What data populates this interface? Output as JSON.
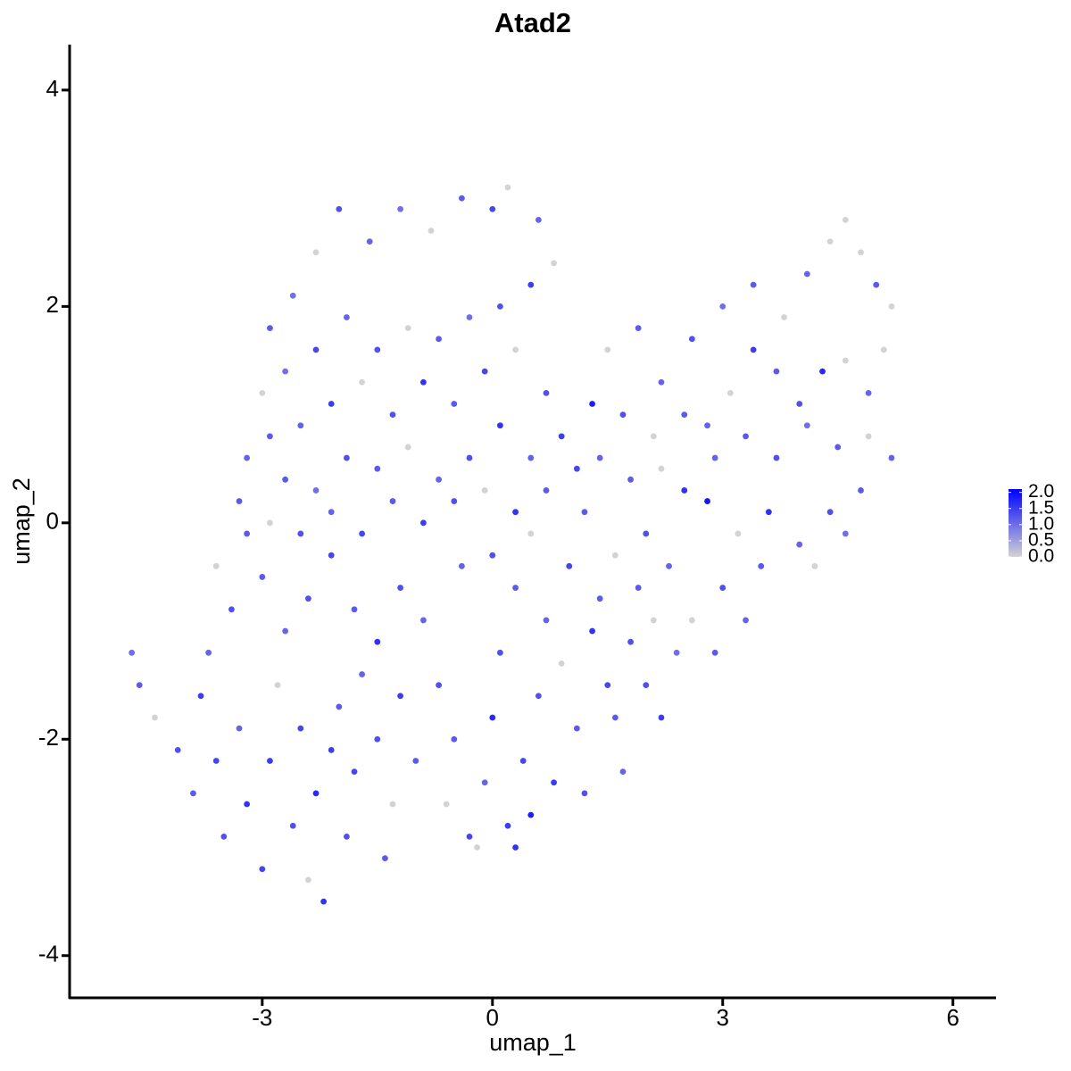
{
  "chart_data": {
    "type": "scatter",
    "title": "Atad2",
    "x_label": "umap_1",
    "y_label": "umap_2",
    "x": [
      -2.9,
      -2.6,
      -2.3,
      -2.0,
      -1.6,
      -1.2,
      -0.8,
      -0.4,
      0.0,
      0.2,
      0.6,
      0.8,
      0.5,
      0.1,
      -0.3,
      -0.7,
      -1.1,
      -1.5,
      -1.9,
      -2.3,
      -2.7,
      -3.0,
      -2.9,
      -2.5,
      -2.1,
      -1.7,
      -1.3,
      -0.9,
      -0.5,
      -0.1,
      0.3,
      0.7,
      0.9,
      0.5,
      0.1,
      -0.3,
      -0.7,
      -1.1,
      -1.5,
      -1.9,
      -2.3,
      -2.7,
      -3.2,
      -3.3,
      -2.9,
      -2.5,
      -2.1,
      -1.7,
      -1.3,
      -0.9,
      -0.5,
      -0.1,
      0.3,
      0.7,
      1.1,
      1.3,
      1.5,
      1.9,
      2.2,
      2.6,
      3.0,
      3.4,
      3.8,
      4.1,
      4.4,
      4.6,
      4.8,
      5.0,
      5.2,
      5.1,
      4.9,
      4.6,
      4.3,
      4.0,
      3.7,
      3.4,
      3.1,
      2.8,
      2.5,
      2.1,
      1.7,
      1.4,
      1.8,
      2.2,
      2.5,
      2.9,
      3.3,
      3.7,
      4.1,
      4.5,
      4.9,
      5.2,
      4.8,
      4.4,
      4.0,
      3.6,
      3.2,
      2.8,
      3.5,
      3.0,
      2.6,
      3.3,
      2.9,
      2.4,
      2.0,
      1.6,
      2.2,
      4.6,
      4.2,
      -4.7,
      -4.6,
      -4.4,
      -4.1,
      -3.8,
      -3.9,
      -3.6,
      -3.5,
      -3.3,
      -3.2,
      -3.0,
      -2.9,
      -2.8,
      -2.6,
      -2.5,
      -2.4,
      -2.3,
      -2.2,
      -2.1,
      -2.0,
      -1.9,
      -1.8,
      -1.7,
      -1.5,
      -1.4,
      -1.3,
      -1.2,
      -1.0,
      -3.7,
      -3.4,
      -3.0,
      -2.7,
      -2.4,
      -2.1,
      -1.8,
      -1.5,
      -1.2,
      -0.9,
      -3.6,
      -3.2,
      -0.7,
      -0.5,
      -0.6,
      -0.3,
      -0.1,
      0.0,
      0.1,
      0.2,
      0.3,
      0.4,
      0.5,
      0.6,
      0.7,
      0.8,
      0.9,
      1.0,
      1.1,
      1.2,
      1.3,
      1.4,
      1.5,
      1.6,
      1.8,
      1.9,
      2.1,
      2.3,
      0.0,
      -0.4,
      0.5,
      1.2,
      -0.2,
      0.3,
      2.0,
      1.7
    ],
    "y": [
      1.8,
      2.1,
      2.5,
      2.9,
      2.6,
      2.9,
      2.7,
      3.0,
      2.9,
      3.1,
      2.8,
      2.4,
      2.2,
      2.0,
      1.9,
      1.7,
      1.8,
      1.6,
      1.9,
      1.6,
      1.4,
      1.2,
      0.8,
      0.9,
      1.1,
      1.3,
      1.0,
      1.3,
      1.1,
      1.4,
      1.6,
      1.2,
      0.8,
      0.6,
      0.9,
      0.6,
      0.4,
      0.7,
      0.5,
      0.6,
      0.3,
      0.4,
      0.6,
      0.2,
      0.0,
      -0.1,
      0.1,
      -0.1,
      0.2,
      0.0,
      0.2,
      0.3,
      0.1,
      0.3,
      0.5,
      1.1,
      1.6,
      1.8,
      1.3,
      1.7,
      2.0,
      2.2,
      1.9,
      2.3,
      2.6,
      2.8,
      2.5,
      2.2,
      2.0,
      1.6,
      1.2,
      1.5,
      1.4,
      1.1,
      1.4,
      1.6,
      1.2,
      0.9,
      1.0,
      0.8,
      1.0,
      0.6,
      0.4,
      0.5,
      0.3,
      0.6,
      0.8,
      0.6,
      0.9,
      0.7,
      0.8,
      0.6,
      0.3,
      0.1,
      -0.2,
      0.1,
      -0.1,
      0.2,
      -0.4,
      -0.6,
      -0.9,
      -0.9,
      -1.2,
      -1.2,
      -1.5,
      -1.8,
      -1.8,
      -0.1,
      -0.4,
      -1.2,
      -1.5,
      -1.8,
      -2.1,
      -1.6,
      -2.5,
      -2.2,
      -2.9,
      -1.9,
      -2.6,
      -3.2,
      -2.2,
      -1.5,
      -2.8,
      -1.9,
      -3.3,
      -2.5,
      -3.5,
      -2.1,
      -1.7,
      -2.9,
      -2.3,
      -1.4,
      -2.0,
      -3.1,
      -2.6,
      -1.6,
      -2.2,
      -1.2,
      -0.8,
      -0.5,
      -1.0,
      -0.7,
      -0.3,
      -0.8,
      -1.1,
      -0.6,
      -0.9,
      -0.4,
      -0.1,
      -1.5,
      -2.0,
      -2.6,
      -2.9,
      -2.4,
      -1.8,
      -1.2,
      -2.8,
      -0.6,
      -2.2,
      -2.7,
      -1.6,
      -0.9,
      -2.4,
      -1.3,
      -0.4,
      -1.9,
      -2.5,
      -1.0,
      -0.7,
      -1.5,
      -0.3,
      -1.1,
      -0.6,
      -0.9,
      -0.4,
      -0.3,
      -0.4,
      -0.1,
      0.1,
      -3.0,
      -3.0,
      -0.1,
      -2.3
    ],
    "values": [
      1.2,
      1.0,
      0,
      1.3,
      1.1,
      1.0,
      0,
      1.2,
      1.4,
      0,
      1.1,
      0,
      1.5,
      1.3,
      1.0,
      1.2,
      0,
      1.3,
      1.1,
      1.4,
      1.0,
      0,
      1.2,
      1.1,
      1.5,
      0,
      1.3,
      1.6,
      1.2,
      1.4,
      0,
      1.3,
      1.5,
      1.1,
      1.6,
      1.3,
      1.1,
      0,
      1.2,
      1.3,
      1.0,
      1.2,
      1.1,
      1.2,
      0,
      1.3,
      1.1,
      1.4,
      1.2,
      1.5,
      1.3,
      0,
      1.6,
      1.2,
      1.4,
      1.8,
      0,
      1.2,
      1.1,
      1.3,
      1.0,
      1.2,
      0,
      1.1,
      0,
      0,
      0,
      1.2,
      0,
      0,
      1.1,
      0,
      1.7,
      1.3,
      1.2,
      1.5,
      0,
      1.1,
      1.2,
      0,
      1.3,
      1.1,
      1.2,
      0,
      1.6,
      1.1,
      1.2,
      1.3,
      1.0,
      1.2,
      0,
      1.1,
      1.2,
      1.3,
      1.1,
      1.6,
      0,
      1.9,
      1.2,
      1.3,
      0,
      1.1,
      1.2,
      1.0,
      1.3,
      1.2,
      1.5,
      1.0,
      0,
      1.0,
      1.2,
      0,
      1.3,
      1.5,
      1.2,
      1.4,
      1.3,
      1.1,
      1.6,
      1.4,
      1.5,
      0,
      1.3,
      1.4,
      0,
      1.7,
      1.6,
      1.5,
      1.2,
      1.3,
      1.4,
      1.1,
      1.3,
      1.2,
      0,
      1.5,
      1.2,
      1.1,
      1.3,
      1.2,
      1.1,
      1.3,
      1.4,
      1.2,
      1.6,
      1.3,
      1.1,
      0,
      1.2,
      1.3,
      1.2,
      0,
      1.4,
      1.1,
      1.7,
      1.3,
      1.5,
      1.2,
      1.4,
      1.8,
      1.3,
      1.1,
      1.5,
      0,
      1.4,
      1.2,
      1.3,
      1.6,
      1.2,
      1.4,
      0,
      1.3,
      1.2,
      0,
      1.1,
      1.3,
      1.1,
      0,
      1.2,
      0,
      1.6,
      1.3,
      1.1
    ],
    "xlim": [
      -5.51,
      6.55
    ],
    "ylim": [
      -4.39,
      4.42
    ],
    "xticks": [
      -3,
      0,
      3,
      6
    ],
    "yticks": [
      -4,
      -2,
      0,
      2,
      4
    ],
    "colorbar": {
      "low_color": "#d3d3d3",
      "high_color": "#0000ff",
      "lim": [
        0,
        2.1
      ],
      "ticks": [
        {
          "value": 0,
          "label": "0.0"
        },
        0.5,
        {
          "value": 1,
          "label": "1.0"
        },
        1.5,
        {
          "value": 2,
          "label": "2.0"
        }
      ]
    }
  }
}
